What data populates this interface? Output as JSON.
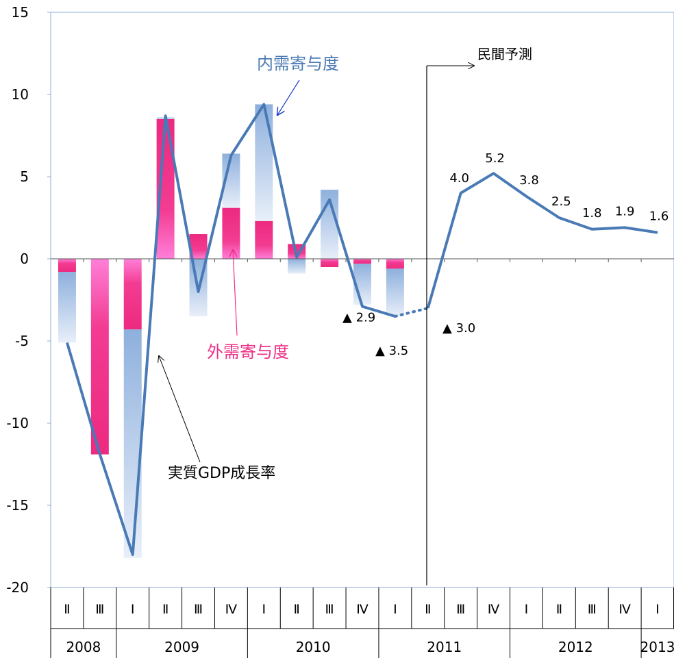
{
  "chart_data": {
    "type": "bar",
    "title": "",
    "xlabel": "",
    "ylabel": "",
    "ylim": [
      -20,
      15
    ],
    "yticks": [
      15,
      10,
      5,
      0,
      -5,
      -10,
      -15,
      -20
    ],
    "categories": [
      "Ⅱ",
      "Ⅲ",
      "Ⅰ",
      "Ⅱ",
      "Ⅲ",
      "Ⅳ",
      "Ⅰ",
      "Ⅱ",
      "Ⅲ",
      "Ⅳ",
      "Ⅰ",
      "Ⅱ",
      "Ⅲ",
      "Ⅳ",
      "Ⅰ",
      "Ⅱ",
      "Ⅲ",
      "Ⅳ",
      "Ⅰ"
    ],
    "year_groups": [
      {
        "label": "2008",
        "count": 2
      },
      {
        "label": "2009",
        "count": 4
      },
      {
        "label": "2010",
        "count": 4
      },
      {
        "label": "2011",
        "count": 4
      },
      {
        "label": "2012",
        "count": 4
      },
      {
        "label": "2013",
        "count": 1
      }
    ],
    "series": [
      {
        "name": "外需寄与度",
        "kind": "bar",
        "color": "#ee2f87",
        "values": [
          -0.8,
          -11.9,
          -4.3,
          8.5,
          1.5,
          3.1,
          2.3,
          0.9,
          -0.5,
          -0.3,
          -0.6,
          null,
          null,
          null,
          null,
          null,
          null,
          null,
          null
        ]
      },
      {
        "name": "内需寄与度",
        "kind": "bar",
        "color": "#8eb0dd",
        "values": [
          -4.3,
          0,
          -13.9,
          0.1,
          -3.5,
          3.3,
          7.1,
          -0.9,
          4.2,
          -2.5,
          -2.9,
          null,
          null,
          null,
          null,
          null,
          null,
          null,
          null
        ]
      },
      {
        "name": "実質GDP成長率",
        "kind": "line",
        "color": "#4a7ab5",
        "values": [
          -5.1,
          -11.9,
          -18.0,
          8.7,
          -2.0,
          6.3,
          9.4,
          0.1,
          3.6,
          -2.9,
          -3.5,
          -3.0,
          4.0,
          5.2,
          3.8,
          2.5,
          1.8,
          1.9,
          1.6
        ]
      }
    ],
    "data_labels": [
      {
        "index": 9,
        "text": "▲ 2.9"
      },
      {
        "index": 10,
        "text": "▲ 3.5"
      },
      {
        "index": 11,
        "text": "▲ 3.0"
      },
      {
        "index": 12,
        "text": "4.0"
      },
      {
        "index": 13,
        "text": "5.2"
      },
      {
        "index": 14,
        "text": "3.8"
      },
      {
        "index": 15,
        "text": "2.5"
      },
      {
        "index": 16,
        "text": "1.8"
      },
      {
        "index": 17,
        "text": "1.9"
      },
      {
        "index": 18,
        "text": "1.6"
      }
    ],
    "annotations": {
      "domestic": "内需寄与度",
      "external": "外需寄与度",
      "gdp": "実質GDP成長率",
      "forecast": "民間予測"
    },
    "forecast_start_index": 11,
    "grid": false
  }
}
